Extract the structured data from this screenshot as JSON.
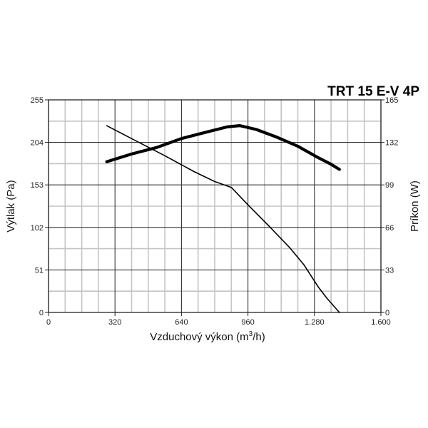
{
  "chart_data": {
    "type": "line",
    "title": "TRT 15 E-V 4P",
    "xlabel_prefix": "Vzduchový výkon (m",
    "xlabel_sup": "3",
    "xlabel_suffix": "/h)",
    "ylabel_left": "Výtlak (Pa)",
    "ylabel_right": "Príkon (W)",
    "xlim": [
      0,
      1600
    ],
    "ylim_left": [
      0,
      255
    ],
    "ylim_right": [
      0,
      165
    ],
    "x_ticks": [
      0,
      320,
      640,
      960,
      1280,
      1600
    ],
    "x_tick_labels": [
      "0",
      "320",
      "640",
      "960",
      "1.280",
      "1.600"
    ],
    "y_left_ticks": [
      0,
      51,
      102,
      153,
      204,
      255
    ],
    "y_left_tick_labels": [
      "0",
      "51",
      "102",
      "153",
      "204",
      "255"
    ],
    "y_right_ticks": [
      0,
      33,
      66,
      99,
      132,
      165
    ],
    "y_right_tick_labels": [
      "0",
      "33",
      "66",
      "99",
      "132",
      "165"
    ],
    "grid": true,
    "series": [
      {
        "axis": "left",
        "style": "thin",
        "x": [
          280,
          420,
          560,
          700,
          800,
          880,
          960,
          1060,
          1160,
          1230,
          1300,
          1340,
          1400
        ],
        "y": [
          224,
          206,
          188,
          169,
          157,
          150,
          129,
          104,
          78,
          57,
          30,
          17,
          0
        ]
      },
      {
        "axis": "right",
        "style": "thick",
        "x": [
          280,
          400,
          520,
          640,
          760,
          860,
          920,
          1000,
          1100,
          1200,
          1300,
          1360,
          1400
        ],
        "y": [
          117,
          123,
          128,
          135,
          140,
          144,
          145,
          142,
          136,
          129,
          120,
          115,
          111
        ]
      }
    ]
  }
}
